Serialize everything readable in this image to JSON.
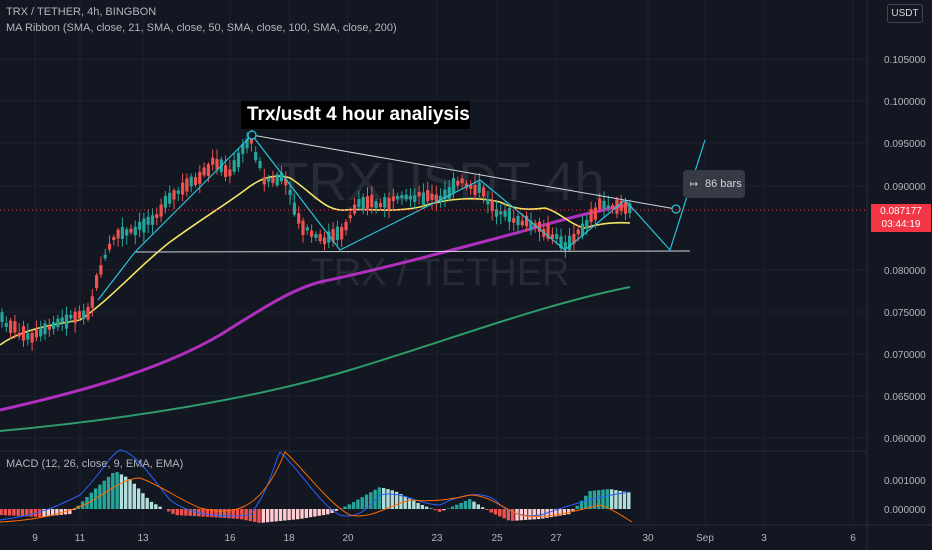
{
  "header": {
    "symbol_line": "TRX / TETHER, 4h, BINGBON",
    "ma_ribbon_line": "MA Ribbon (SMA, close, 21, SMA, close, 50, SMA, close, 100, SMA, close, 200)",
    "macd_line": "MACD (12, 26, close, 9, EMA, EMA)",
    "currency_button": "USDT"
  },
  "watermark": {
    "big": "TRXUSDT 4h",
    "small": "TRX / TETHER"
  },
  "annotation": "Trx/usdt 4 hour analiysis",
  "bars_label": "86 bars",
  "price_tag": {
    "price": "0.087177",
    "countdown": "03:44:19"
  },
  "price_axis": [
    "0.105000",
    "0.100000",
    "0.095000",
    "0.090000",
    "0.080000",
    "0.075000",
    "0.070000",
    "0.065000",
    "0.060000"
  ],
  "macd_axis": [
    "0.001000",
    "0.000000"
  ],
  "time_axis": [
    "9",
    "11",
    "13",
    "16",
    "18",
    "20",
    "23",
    "25",
    "27",
    "30",
    "Sep",
    "3",
    "6"
  ],
  "colors": {
    "background": "#131722",
    "up": "#26a69a",
    "down": "#ef5350",
    "ma21": "#f5e663",
    "ma100": "#b02fbf",
    "ma200": "#2e9b6b",
    "pattern": "#26c6da",
    "price_tag": "#f23645"
  }
}
